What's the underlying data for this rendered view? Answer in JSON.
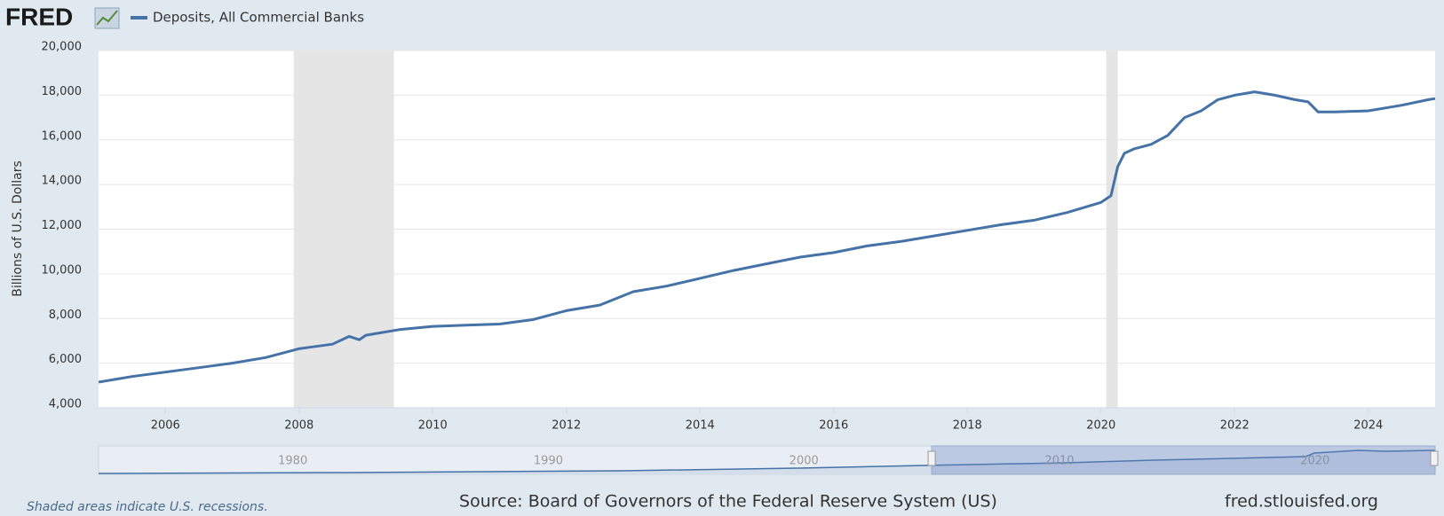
{
  "logo": "FRED",
  "chart_data": {
    "type": "line",
    "title": null,
    "series": [
      {
        "name": "Deposits, All Commercial Banks",
        "color": "#4572a7",
        "x": [
          2005.0,
          2005.5,
          2006.0,
          2006.5,
          2007.0,
          2007.5,
          2008.0,
          2008.5,
          2008.75,
          2008.9,
          2009.0,
          2009.5,
          2010.0,
          2010.5,
          2011.0,
          2011.5,
          2012.0,
          2012.5,
          2013.0,
          2013.5,
          2014.0,
          2014.5,
          2015.0,
          2015.5,
          2016.0,
          2016.5,
          2017.0,
          2017.5,
          2018.0,
          2018.5,
          2019.0,
          2019.5,
          2020.0,
          2020.15,
          2020.25,
          2020.35,
          2020.5,
          2020.75,
          2021.0,
          2021.25,
          2021.5,
          2021.75,
          2022.0,
          2022.3,
          2022.6,
          2022.9,
          2023.1,
          2023.25,
          2023.5,
          2024.0,
          2024.5,
          2024.9,
          2025.0
        ],
        "values": [
          5150,
          5400,
          5600,
          5800,
          6000,
          6250,
          6650,
          6850,
          7200,
          7050,
          7250,
          7500,
          7650,
          7700,
          7750,
          7950,
          8350,
          8600,
          9200,
          9450,
          9800,
          10150,
          10450,
          10750,
          10950,
          11250,
          11450,
          11700,
          11950,
          12200,
          12400,
          12750,
          13200,
          13500,
          14800,
          15400,
          15600,
          15800,
          16200,
          17000,
          17300,
          17800,
          18000,
          18150,
          18000,
          17800,
          17700,
          17250,
          17250,
          17300,
          17550,
          17800,
          17850
        ]
      }
    ],
    "y_label": "Billions of U.S. Dollars",
    "xlim": [
      2005.0,
      2025.0
    ],
    "xticks": [
      2006,
      2008,
      2010,
      2012,
      2014,
      2016,
      2018,
      2020,
      2022,
      2024
    ],
    "ylim": [
      4000,
      20000
    ],
    "yticks": [
      {
        "value": 4000,
        "label": "4,000"
      },
      {
        "value": 6000,
        "label": "6,000"
      },
      {
        "value": 8000,
        "label": "8,000"
      },
      {
        "value": 10000,
        "label": "10,000"
      },
      {
        "value": 12000,
        "label": "12,000"
      },
      {
        "value": 14000,
        "label": "14,000"
      },
      {
        "value": 16000,
        "label": "16,000"
      },
      {
        "value": 18000,
        "label": "18,000"
      },
      {
        "value": 20000,
        "label": "20,000"
      }
    ],
    "grid": true,
    "recessions": [
      [
        2007.92,
        2009.42
      ],
      [
        2020.08,
        2020.25
      ]
    ],
    "navigator": {
      "xlim": [
        1972.4,
        2024.7
      ],
      "xticks": [
        1980,
        1990,
        2000,
        2010,
        2020
      ]
    },
    "note": "Shaded areas indicate U.S. recessions.",
    "source": "Source: Board of Governors of the Federal Reserve System (US)",
    "site": "fred.stlouisfed.org"
  }
}
